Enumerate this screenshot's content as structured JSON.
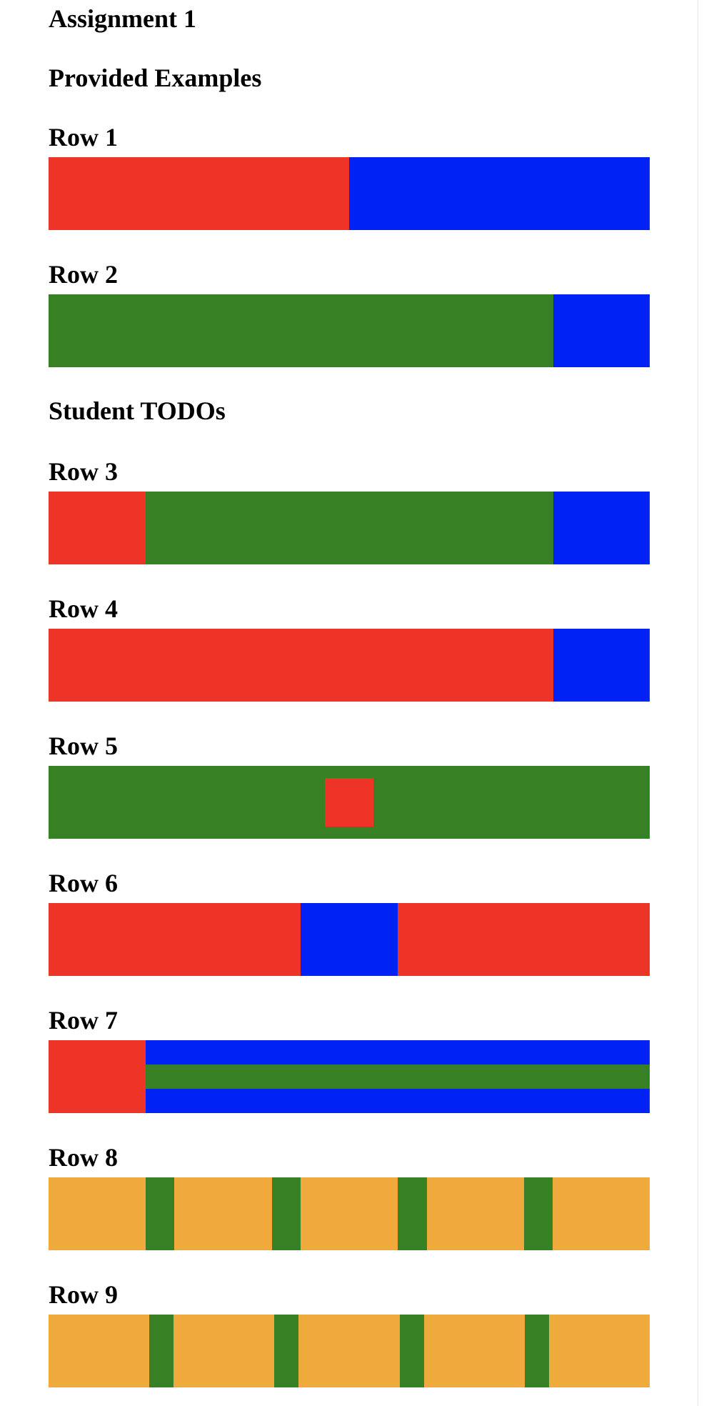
{
  "title": "Assignment 1",
  "sections": {
    "provided": "Provided Examples",
    "todos": "Student TODOs"
  },
  "rows": [
    {
      "label": "Row 1"
    },
    {
      "label": "Row 2"
    },
    {
      "label": "Row 3"
    },
    {
      "label": "Row 4"
    },
    {
      "label": "Row 5"
    },
    {
      "label": "Row 6"
    },
    {
      "label": "Row 7"
    },
    {
      "label": "Row 8"
    },
    {
      "label": "Row 9"
    }
  ],
  "colors": {
    "red": "#ed3426",
    "blue": "#0022f5",
    "green": "#388024",
    "orange": "#f0a93c"
  }
}
